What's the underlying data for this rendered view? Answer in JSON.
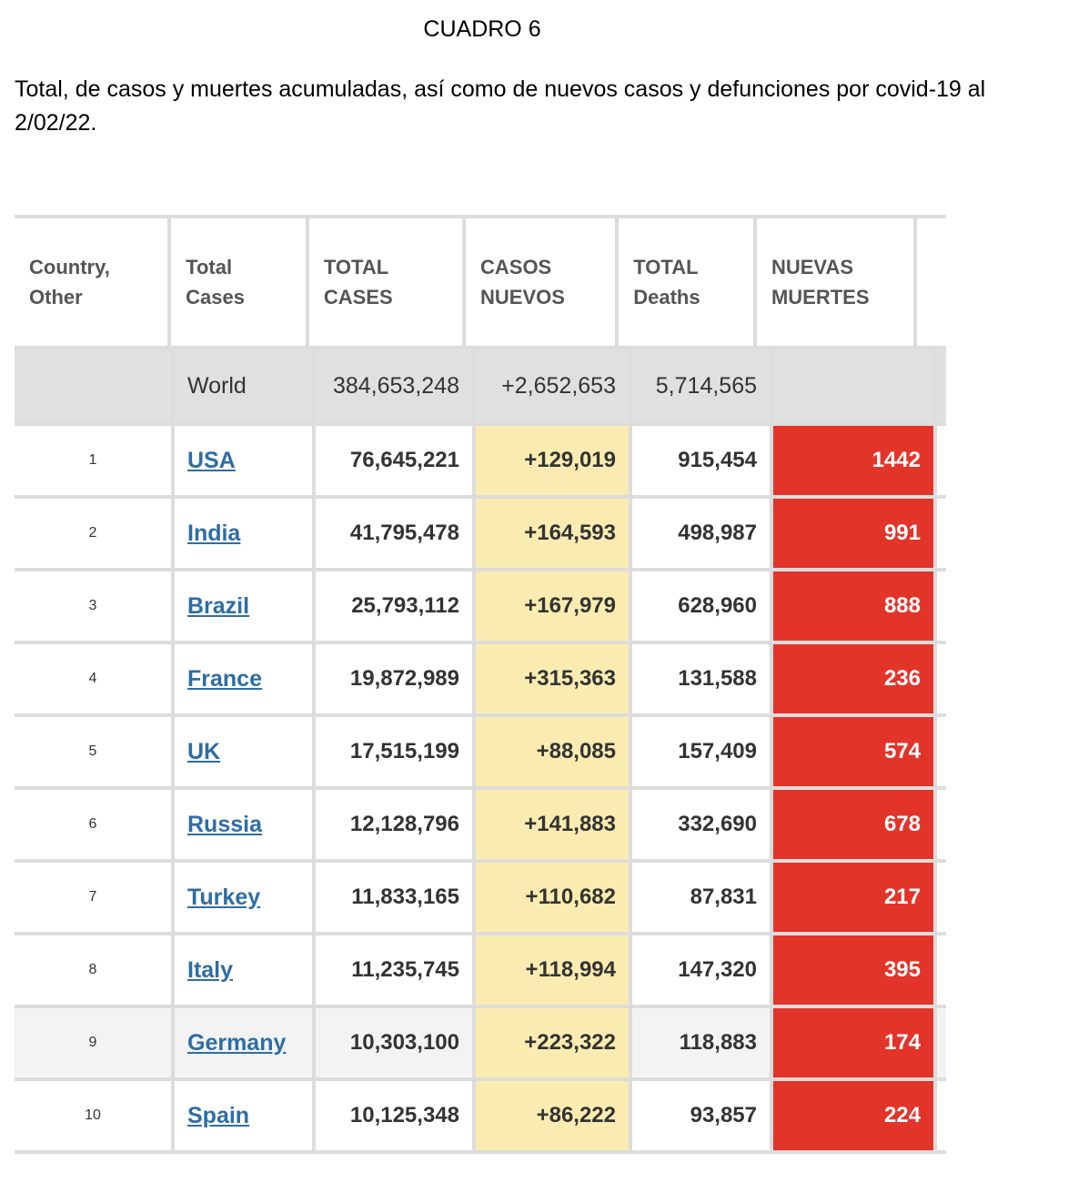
{
  "title": "CUADRO 6",
  "caption": "Total, de casos y muertes acumuladas, así como de nuevos casos y defunciones por covid-19 al 2/02/22.",
  "colors": {
    "new_cases_bg": "#faecb0",
    "new_deaths_bg": "#e3342a",
    "link": "#2e6da4",
    "world_row_bg": "#e0e0e0"
  },
  "table": {
    "headers": {
      "country": "Country,\nOther",
      "total_cases": "Total\nCases",
      "total_cases_upper": "TOTAL\nCASES",
      "new_cases": "CASOS\nNUEVOS",
      "total_deaths": "TOTAL\nDeaths",
      "new_deaths": "NUEVAS\nMUERTES"
    },
    "world": {
      "name": "World",
      "total_cases": "384,653,248",
      "new_cases": "+2,652,653",
      "total_deaths": "5,714,565",
      "new_deaths": ""
    },
    "rows": [
      {
        "rank": "1",
        "country": "USA",
        "total_cases": "76,645,221",
        "new_cases": "+129,019",
        "total_deaths": "915,454",
        "new_deaths": "1442"
      },
      {
        "rank": "2",
        "country": "India",
        "total_cases": "41,795,478",
        "new_cases": "+164,593",
        "total_deaths": "498,987",
        "new_deaths": "991"
      },
      {
        "rank": "3",
        "country": "Brazil",
        "total_cases": "25,793,112",
        "new_cases": "+167,979",
        "total_deaths": "628,960",
        "new_deaths": "888"
      },
      {
        "rank": "4",
        "country": "France",
        "total_cases": "19,872,989",
        "new_cases": "+315,363",
        "total_deaths": "131,588",
        "new_deaths": "236"
      },
      {
        "rank": "5",
        "country": "UK",
        "total_cases": "17,515,199",
        "new_cases": "+88,085",
        "total_deaths": "157,409",
        "new_deaths": "574"
      },
      {
        "rank": "6",
        "country": "Russia",
        "total_cases": "12,128,796",
        "new_cases": "+141,883",
        "total_deaths": "332,690",
        "new_deaths": "678"
      },
      {
        "rank": "7",
        "country": "Turkey",
        "total_cases": "11,833,165",
        "new_cases": "+110,682",
        "total_deaths": "87,831",
        "new_deaths": "217"
      },
      {
        "rank": "8",
        "country": "Italy",
        "total_cases": "11,235,745",
        "new_cases": "+118,994",
        "total_deaths": "147,320",
        "new_deaths": "395"
      },
      {
        "rank": "9",
        "country": "Germany",
        "total_cases": "10,303,100",
        "new_cases": "+223,322",
        "total_deaths": "118,883",
        "new_deaths": "174"
      },
      {
        "rank": "10",
        "country": "Spain",
        "total_cases": "10,125,348",
        "new_cases": "+86,222",
        "total_deaths": "93,857",
        "new_deaths": "224"
      }
    ]
  }
}
